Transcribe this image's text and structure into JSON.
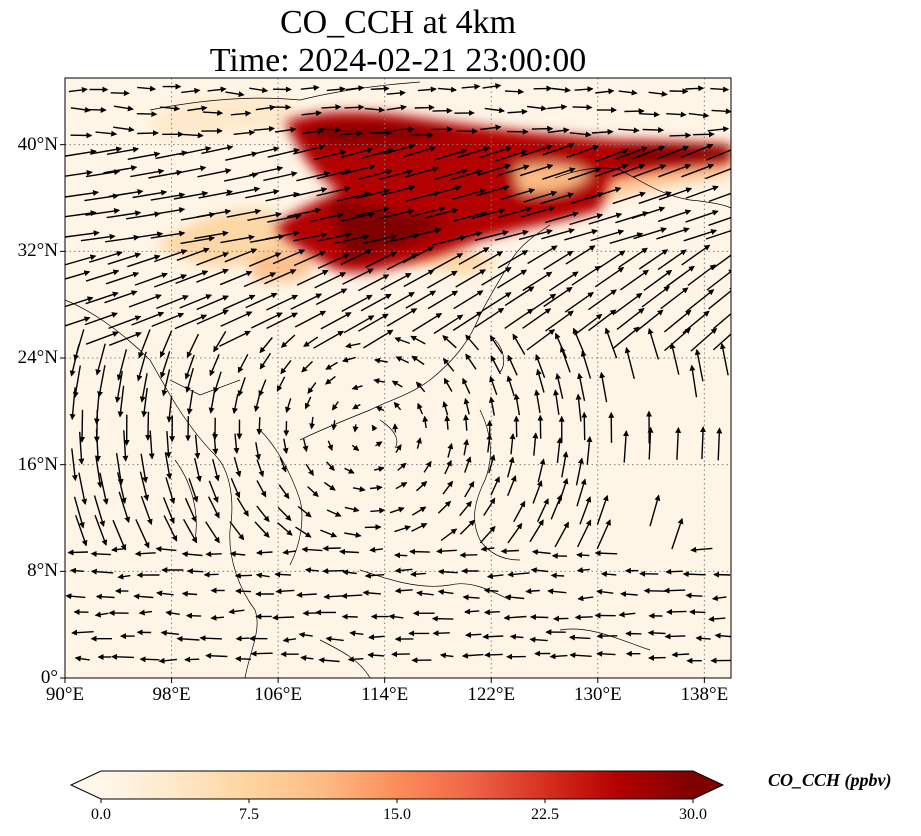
{
  "title": {
    "line1": "CO_CCH at 4km",
    "line2": "Time: 2024-02-21 23:00:00"
  },
  "map": {
    "lon_range": [
      90,
      140
    ],
    "lat_range": [
      0,
      45
    ],
    "lat_ticks": [
      {
        "value": 40,
        "label": "40°N"
      },
      {
        "value": 32,
        "label": "32°N"
      },
      {
        "value": 24,
        "label": "24°N"
      },
      {
        "value": 16,
        "label": "16°N"
      },
      {
        "value": 8,
        "label": "8°N"
      },
      {
        "value": 0,
        "label": "0°"
      }
    ],
    "lon_ticks": [
      {
        "value": 90,
        "label": "90°E"
      },
      {
        "value": 98,
        "label": "98°E"
      },
      {
        "value": 106,
        "label": "106°E"
      },
      {
        "value": 114,
        "label": "114°E"
      },
      {
        "value": 122,
        "label": "122°E"
      },
      {
        "value": 130,
        "label": "130°E"
      },
      {
        "value": 138,
        "label": "138°E"
      }
    ],
    "gridlines": "dotted",
    "vectors": "wind",
    "colors": {
      "background": "#fff5e6",
      "plume_high": "#7f0000",
      "plume_mid": "#d7301f",
      "plume_low": "#fdbb84",
      "coast": "#000000",
      "grid": "#808080"
    }
  },
  "colorbar": {
    "label": "CO_CCH (ppbv)",
    "min": 0,
    "max": 30,
    "extend": "both",
    "colormap": "OrRd",
    "ticks": [
      {
        "value": 0,
        "label": "0.0"
      },
      {
        "value": 7.5,
        "label": "7.5"
      },
      {
        "value": 15,
        "label": "15.0"
      },
      {
        "value": 22.5,
        "label": "22.5"
      },
      {
        "value": 30,
        "label": "30.0"
      }
    ],
    "stops": [
      "#fff7ec",
      "#fee8c8",
      "#fdd49e",
      "#fdbb84",
      "#fc8d59",
      "#ef6548",
      "#d7301f",
      "#b30000",
      "#7f0000"
    ]
  }
}
